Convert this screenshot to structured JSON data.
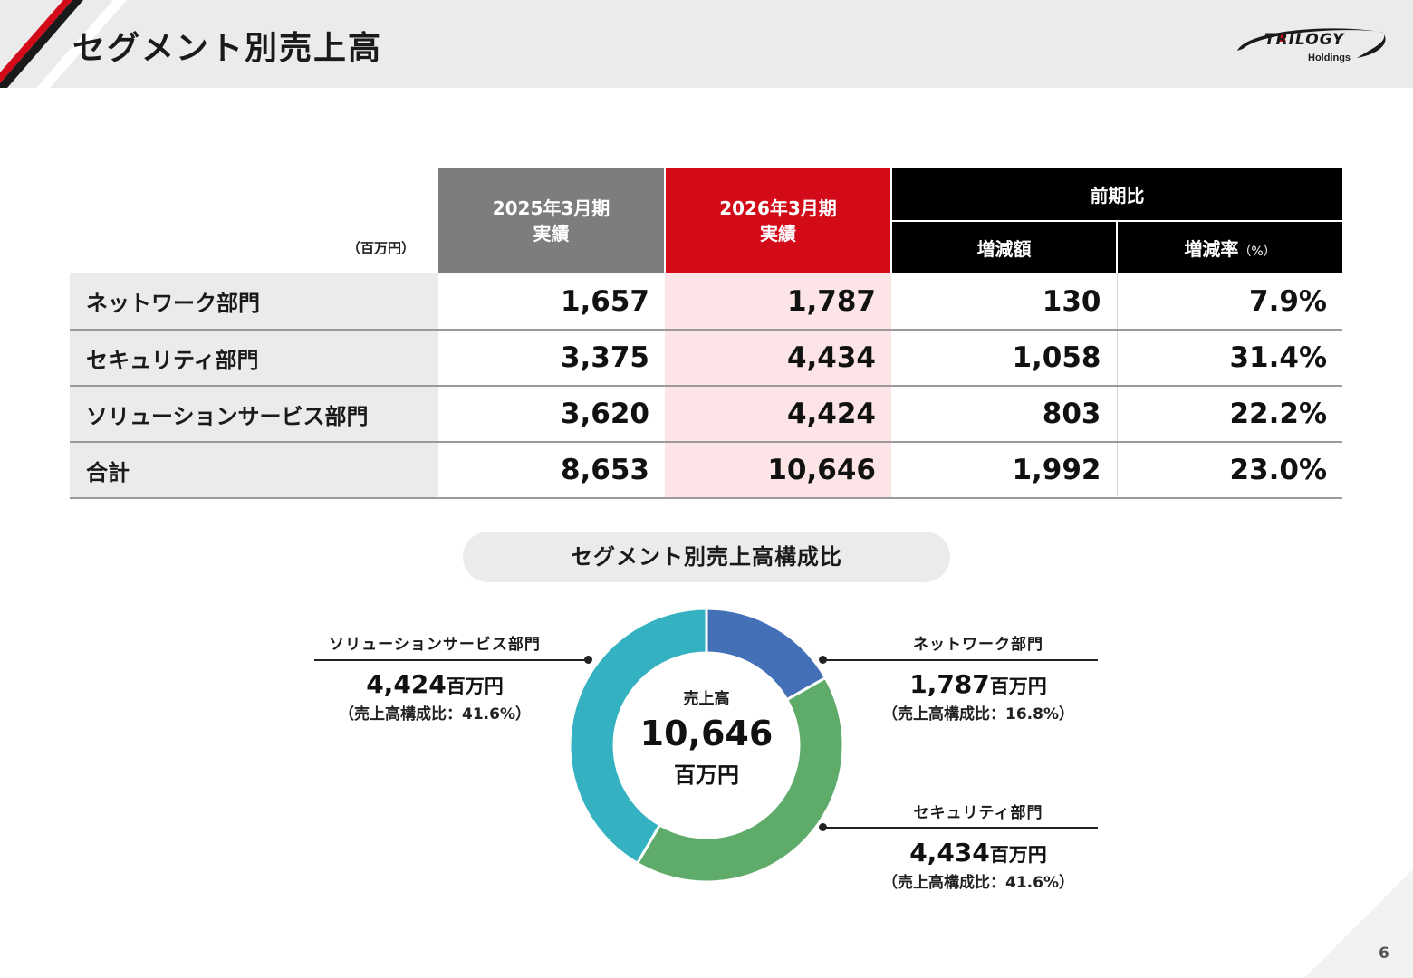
{
  "header": {
    "title": "セグメント別売上高",
    "logo_text": "TRILOGY",
    "logo_sub": "Holdings"
  },
  "table": {
    "unit": "（百万円）",
    "col_fy2025": {
      "line1": "2025年3月期",
      "line2": "実績"
    },
    "col_fy2026": {
      "line1": "2026年3月期",
      "line2": "実績"
    },
    "col_yoy": "前期比",
    "col_change": "増減額",
    "col_rate": "増減率",
    "col_rate_unit": "（%）",
    "rows": [
      {
        "label": "ネットワーク部門",
        "fy2025": "1,657",
        "fy2026": "1,787",
        "change": "130",
        "rate": "7.9%"
      },
      {
        "label": "セキュリティ部門",
        "fy2025": "3,375",
        "fy2026": "4,434",
        "change": "1,058",
        "rate": "31.4%"
      },
      {
        "label": "ソリューションサービス部門",
        "fy2025": "3,620",
        "fy2026": "4,424",
        "change": "803",
        "rate": "22.2%"
      },
      {
        "label": "合計",
        "fy2025": "8,653",
        "fy2026": "10,646",
        "change": "1,992",
        "rate": "23.0%"
      }
    ]
  },
  "composition": {
    "title": "セグメント別売上高構成比",
    "center_label": "売上高",
    "center_value": "10,646",
    "center_unit": "百万円",
    "unit": "百万円",
    "callouts": [
      {
        "name": "ソリューションサービス部門",
        "value": "4,424",
        "ratio_text": "（売上高構成比：41.6%）"
      },
      {
        "name": "ネットワーク部門",
        "value": "1,787",
        "ratio_text": "（売上高構成比：16.8%）"
      },
      {
        "name": "セキュリティ部門",
        "value": "4,434",
        "ratio_text": "（売上高構成比：41.6%）"
      }
    ]
  },
  "chart_data": {
    "type": "pie",
    "categories": [
      "ネットワーク部門",
      "セキュリティ部門",
      "ソリューションサービス部門"
    ],
    "values": [
      1787,
      4434,
      4424
    ],
    "colors": [
      "#4470b8",
      "#5fac6a",
      "#34b2c2"
    ]
  },
  "page_number": "6"
}
